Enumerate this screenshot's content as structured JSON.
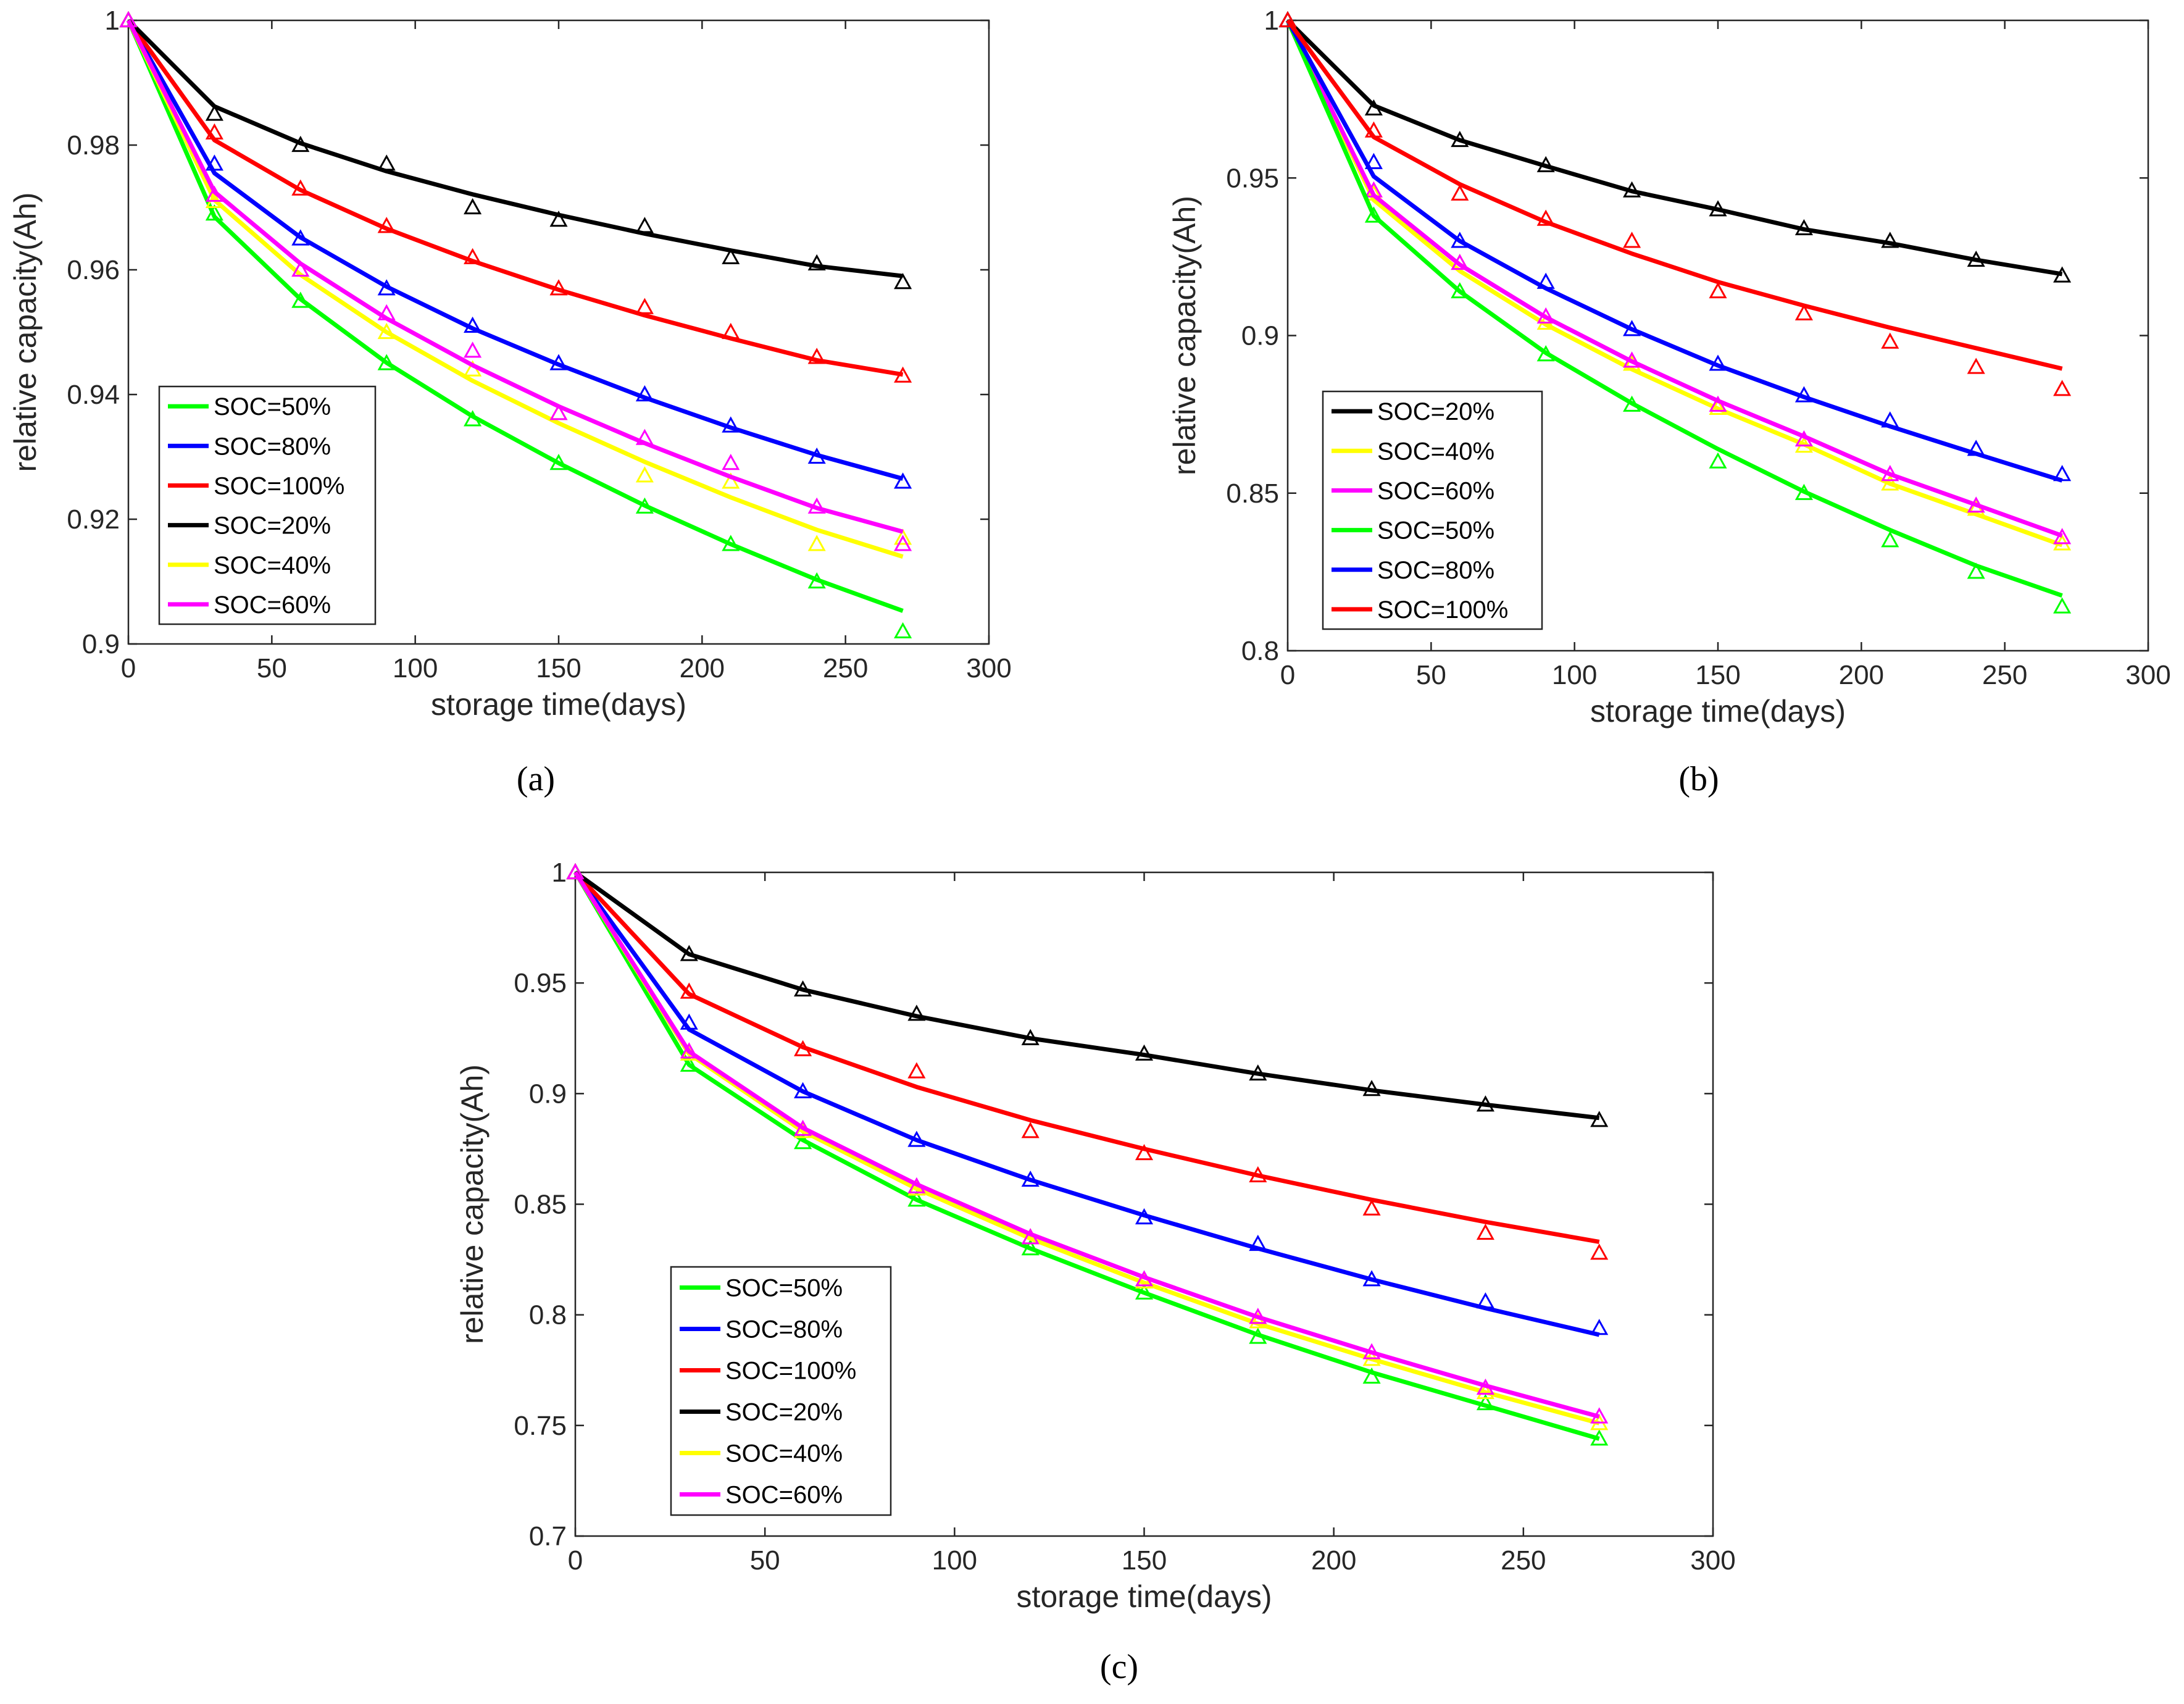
{
  "colors": {
    "SOC=20%": "#000000",
    "SOC=40%": "#ffff00",
    "SOC=50%": "#00ff00",
    "SOC=60%": "#ff00ff",
    "SOC=80%": "#0000ff",
    "SOC=100%": "#ff0000"
  },
  "chart_data": [
    {
      "type": "line",
      "panel_label": "(a)",
      "xlabel": "storage time(days)",
      "ylabel": "relative capacity(Ah)",
      "xlim": [
        0,
        300
      ],
      "ylim": [
        0.9,
        1.0
      ],
      "xticks": [
        0,
        50,
        100,
        150,
        200,
        250,
        300
      ],
      "yticks": [
        0.9,
        0.92,
        0.94,
        0.96,
        0.98,
        1
      ],
      "ytick_labels": [
        "0.9",
        "0.92",
        "0.94",
        "0.96",
        "0.98",
        "1"
      ],
      "legend_position": "lower-left",
      "legend_order": [
        "SOC=50%",
        "SOC=80%",
        "SOC=100%",
        "SOC=20%",
        "SOC=40%",
        "SOC=60%"
      ],
      "x": [
        0,
        30,
        60,
        90,
        120,
        150,
        180,
        210,
        240,
        270
      ],
      "series": [
        {
          "name": "SOC=50%",
          "fit": [
            1,
            0.9685,
            0.9553,
            0.9451,
            0.9365,
            0.929,
            0.9222,
            0.916,
            0.9103,
            0.9053
          ],
          "measured": [
            1,
            0.969,
            0.955,
            0.945,
            0.936,
            0.929,
            0.922,
            0.916,
            0.91,
            0.902
          ]
        },
        {
          "name": "SOC=80%",
          "fit": [
            1,
            0.9755,
            0.9652,
            0.9573,
            0.9506,
            0.9448,
            0.9395,
            0.9347,
            0.9303,
            0.9265
          ],
          "measured": [
            1,
            0.977,
            0.965,
            0.957,
            0.951,
            0.945,
            0.94,
            0.935,
            0.93,
            0.926
          ]
        },
        {
          "name": "SOC=100%",
          "fit": [
            1,
            0.9808,
            0.9728,
            0.9666,
            0.9614,
            0.9568,
            0.9527,
            0.949,
            0.9455,
            0.9432
          ],
          "measured": [
            1,
            0.982,
            0.973,
            0.967,
            0.962,
            0.957,
            0.954,
            0.95,
            0.946,
            0.943
          ]
        },
        {
          "name": "SOC=20%",
          "fit": [
            1,
            0.9862,
            0.9803,
            0.9758,
            0.9721,
            0.9688,
            0.9658,
            0.9631,
            0.9606,
            0.959
          ],
          "measured": [
            1,
            0.985,
            0.98,
            0.977,
            0.97,
            0.968,
            0.967,
            0.962,
            0.961,
            0.958
          ]
        },
        {
          "name": "SOC=40%",
          "fit": [
            1,
            0.9712,
            0.9592,
            0.95,
            0.9422,
            0.9354,
            0.9292,
            0.9235,
            0.9183,
            0.914
          ],
          "measured": [
            1,
            0.971,
            0.96,
            0.95,
            0.944,
            0.937,
            0.927,
            0.926,
            0.916,
            0.917
          ]
        },
        {
          "name": "SOC=60%",
          "fit": [
            1,
            0.9725,
            0.961,
            0.9522,
            0.9447,
            0.9381,
            0.9322,
            0.9268,
            0.9218,
            0.918
          ],
          "measured": [
            1,
            0.972,
            0.96,
            0.953,
            0.947,
            0.937,
            0.933,
            0.929,
            0.922,
            0.916
          ]
        }
      ]
    },
    {
      "type": "line",
      "panel_label": "(b)",
      "xlabel": "storage time(days)",
      "ylabel": "relative capacity(Ah)",
      "xlim": [
        0,
        300
      ],
      "ylim": [
        0.8,
        1.0
      ],
      "xticks": [
        0,
        50,
        100,
        150,
        200,
        250,
        300
      ],
      "yticks": [
        0.8,
        0.85,
        0.9,
        0.95,
        1
      ],
      "ytick_labels": [
        "0.8",
        "0.85",
        "0.9",
        "0.95",
        "1"
      ],
      "legend_position": "lower-left",
      "legend_order": [
        "SOC=20%",
        "SOC=40%",
        "SOC=60%",
        "SOC=50%",
        "SOC=80%",
        "SOC=100%"
      ],
      "x": [
        0,
        30,
        60,
        90,
        120,
        150,
        180,
        210,
        240,
        270
      ],
      "series": [
        {
          "name": "SOC=20%",
          "fit": [
            1,
            0.973,
            0.962,
            0.9538,
            0.9458,
            0.94,
            0.9337,
            0.9293,
            0.924,
            0.9195
          ],
          "measured": [
            1,
            0.972,
            0.962,
            0.954,
            0.946,
            0.94,
            0.934,
            0.93,
            0.924,
            0.919
          ]
        },
        {
          "name": "SOC=40%",
          "fit": [
            1,
            0.943,
            0.9205,
            0.9035,
            0.8893,
            0.8768,
            0.8655,
            0.853,
            0.8433,
            0.8335
          ],
          "measured": [
            1,
            0.945,
            0.923,
            0.904,
            0.891,
            0.877,
            0.865,
            0.853,
            0.845,
            0.834
          ]
        },
        {
          "name": "SOC=60%",
          "fit": [
            1,
            0.9445,
            0.9225,
            0.9058,
            0.8918,
            0.8793,
            0.868,
            0.856,
            0.8463,
            0.8365
          ],
          "measured": [
            1,
            0.946,
            0.923,
            0.906,
            0.892,
            0.878,
            0.867,
            0.856,
            0.846,
            0.836
          ]
        },
        {
          "name": "SOC=50%",
          "fit": [
            1,
            0.938,
            0.914,
            0.8945,
            0.8785,
            0.864,
            0.8505,
            0.8383,
            0.827,
            0.8175
          ],
          "measured": [
            1,
            0.938,
            0.914,
            0.894,
            0.878,
            0.86,
            0.85,
            0.835,
            0.825,
            0.814
          ]
        },
        {
          "name": "SOC=80%",
          "fit": [
            1,
            0.9505,
            0.93,
            0.915,
            0.902,
            0.8905,
            0.8805,
            0.8712,
            0.8625,
            0.854
          ],
          "measured": [
            1,
            0.955,
            0.93,
            0.917,
            0.902,
            0.891,
            0.881,
            0.873,
            0.864,
            0.856
          ]
        },
        {
          "name": "SOC=100%",
          "fit": [
            1,
            0.963,
            0.948,
            0.936,
            0.926,
            0.917,
            0.9095,
            0.9025,
            0.896,
            0.8895
          ],
          "measured": [
            1,
            0.965,
            0.945,
            0.937,
            0.93,
            0.914,
            0.907,
            0.898,
            0.89,
            0.883
          ]
        }
      ]
    },
    {
      "type": "line",
      "panel_label": "(c)",
      "xlabel": "storage time(days)",
      "ylabel": "relative  capacity(Ah)",
      "xlim": [
        0,
        300
      ],
      "ylim": [
        0.7,
        1.0
      ],
      "xticks": [
        0,
        50,
        100,
        150,
        200,
        250,
        300
      ],
      "yticks": [
        0.7,
        0.75,
        0.8,
        0.85,
        0.9,
        0.95,
        1
      ],
      "ytick_labels": [
        "0.7",
        "0.75",
        "0.8",
        "0.85",
        "0.9",
        "0.95",
        "1"
      ],
      "legend_position": "lower-left",
      "legend_order": [
        "SOC=50%",
        "SOC=80%",
        "SOC=100%",
        "SOC=20%",
        "SOC=40%",
        "SOC=60%"
      ],
      "x": [
        0,
        30,
        60,
        90,
        120,
        150,
        180,
        210,
        240,
        270
      ],
      "series": [
        {
          "name": "SOC=50%",
          "fit": [
            1,
            0.913,
            0.879,
            0.852,
            0.83,
            0.81,
            0.791,
            0.774,
            0.759,
            0.744
          ],
          "measured": [
            1,
            0.913,
            0.878,
            0.852,
            0.83,
            0.81,
            0.79,
            0.772,
            0.76,
            0.744
          ]
        },
        {
          "name": "SOC=80%",
          "fit": [
            1,
            0.929,
            0.901,
            0.879,
            0.861,
            0.845,
            0.83,
            0.816,
            0.803,
            0.791
          ],
          "measured": [
            1,
            0.932,
            0.901,
            0.879,
            0.861,
            0.844,
            0.832,
            0.816,
            0.806,
            0.794
          ]
        },
        {
          "name": "SOC=100%",
          "fit": [
            1,
            0.945,
            0.921,
            0.903,
            0.888,
            0.875,
            0.863,
            0.852,
            0.842,
            0.833
          ],
          "measured": [
            1,
            0.946,
            0.92,
            0.91,
            0.883,
            0.873,
            0.863,
            0.848,
            0.837,
            0.828
          ]
        },
        {
          "name": "SOC=20%",
          "fit": [
            1,
            0.963,
            0.947,
            0.935,
            0.925,
            0.9175,
            0.909,
            0.9015,
            0.895,
            0.889
          ],
          "measured": [
            1,
            0.963,
            0.947,
            0.936,
            0.925,
            0.918,
            0.909,
            0.902,
            0.895,
            0.888
          ]
        },
        {
          "name": "SOC=40%",
          "fit": [
            1,
            0.918,
            0.883,
            0.857,
            0.8345,
            0.8145,
            0.796,
            0.78,
            0.765,
            0.751
          ],
          "measured": [
            1,
            0.918,
            0.883,
            0.857,
            0.835,
            0.815,
            0.797,
            0.78,
            0.765,
            0.751
          ]
        },
        {
          "name": "SOC=60%",
          "fit": [
            1,
            0.919,
            0.8845,
            0.859,
            0.8365,
            0.817,
            0.799,
            0.783,
            0.768,
            0.754
          ],
          "measured": [
            1,
            0.919,
            0.884,
            0.858,
            0.835,
            0.816,
            0.799,
            0.783,
            0.767,
            0.754
          ]
        }
      ]
    }
  ]
}
